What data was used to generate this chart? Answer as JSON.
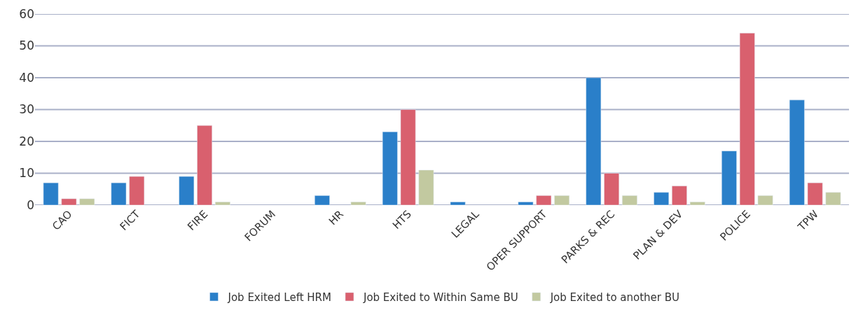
{
  "chart_data": {
    "type": "bar",
    "categories": [
      "CAO",
      "FICT",
      "FIRE",
      "FORUM",
      "HR",
      "HTS",
      "LEGAL",
      "OPER SUPPORT",
      "PARKS & REC",
      "PLAN & DEV",
      "POLICE",
      "TPW"
    ],
    "series": [
      {
        "name": "Job Exited Left HRM",
        "color": "#2a7fc9",
        "values": [
          7,
          7,
          9,
          null,
          3,
          23,
          1,
          1,
          40,
          4,
          17,
          33
        ]
      },
      {
        "name": "Job Exited to Within Same BU",
        "color": "#d9606e",
        "values": [
          2,
          9,
          25,
          null,
          null,
          30,
          null,
          3,
          10,
          6,
          54,
          7
        ]
      },
      {
        "name": "Job Exited to another BU",
        "color": "#c2c9a0",
        "values": [
          2,
          null,
          1,
          null,
          1,
          11,
          null,
          3,
          3,
          1,
          3,
          4
        ]
      }
    ],
    "ylim": [
      0,
      60
    ],
    "yticks": [
      0,
      10,
      20,
      30,
      40,
      50,
      60
    ],
    "grid": "y",
    "legend": "bottom"
  }
}
